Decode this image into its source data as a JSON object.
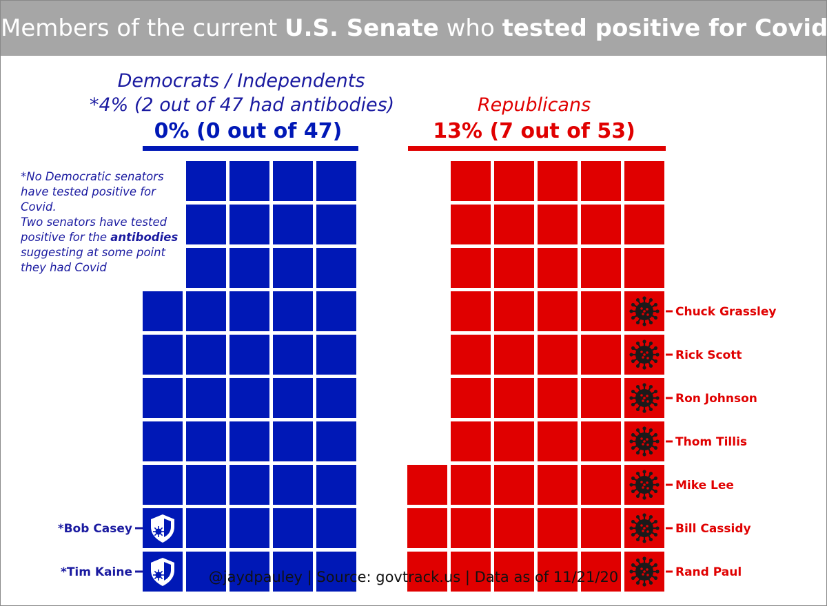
{
  "title": {
    "pre": "Members of the current ",
    "bold1": "U.S. Senate",
    "mid": " who ",
    "bold2": "tested positive for Covid"
  },
  "colors": {
    "dem": "#0018b6",
    "rep": "#e00000",
    "dem_text": "#1a1aa0",
    "icon": "#1a1a1a"
  },
  "chart_data": {
    "type": "waffle",
    "title": "Members of the current U.S. Senate who tested positive for Covid",
    "groups": [
      {
        "key": "dem",
        "name": "Democrats / Independents",
        "subtitle": "*4% (2 out of 47 had antibodies)",
        "headline": "0% (0 out of 47)",
        "total": 47,
        "positive": 0,
        "antibodies": 2,
        "labeled": [
          "*Bob Casey",
          "*Tim Kaine"
        ],
        "note": {
          "line1": "*No Democratic senators have tested positive for Covid.",
          "line2_pre": "Two senators have tested positive for the ",
          "line2_bold": "antibodies",
          "line2_post": " suggesting at some point they had Covid"
        }
      },
      {
        "key": "rep",
        "name": "Republicans",
        "headline": "13% (7 out of 53)",
        "total": 53,
        "positive": 7,
        "labeled": [
          "Chuck Grassley",
          "Rick Scott",
          "Ron Johnson",
          "Thom Tillis",
          "Mike Lee",
          "Bill Cassidy",
          "Rand Paul"
        ]
      }
    ]
  },
  "footer": "@jaydpauley | Source: govtrack.us | Data as of 11/21/20"
}
